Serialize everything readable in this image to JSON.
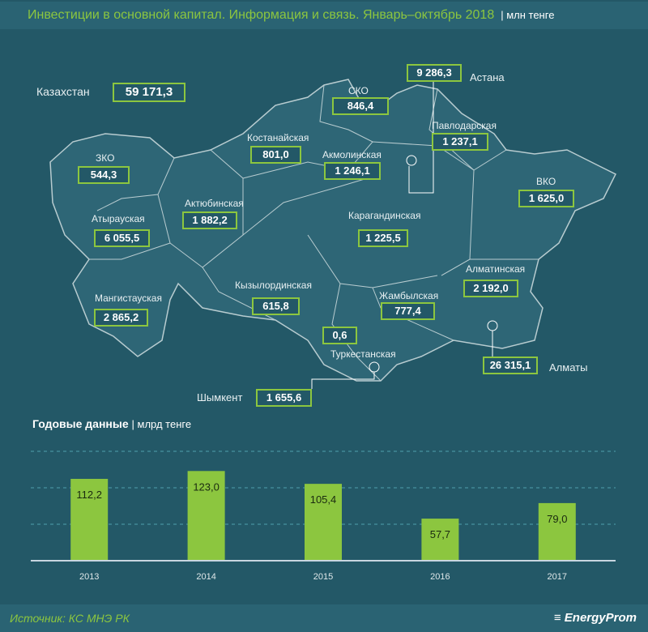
{
  "header": {
    "title": "Инвестиции в основной капитал. Информация и связь. Январь–октябрь 2018",
    "unit": "| млн тенге"
  },
  "total": {
    "label": "Казахстан",
    "value": "59 171,3"
  },
  "regions": [
    {
      "name": "Астана",
      "value": "9 286,3"
    },
    {
      "name": "СКО",
      "value": "846,4"
    },
    {
      "name": "Павлодарская",
      "value": "1 237,1"
    },
    {
      "name": "Костанайская",
      "value": "801,0"
    },
    {
      "name": "Акмолинская",
      "value": "1 246,1"
    },
    {
      "name": "ЗКО",
      "value": "544,3"
    },
    {
      "name": "Актюбинская",
      "value": "1 882,2"
    },
    {
      "name": "ВКО",
      "value": "1 625,0"
    },
    {
      "name": "Атырауская",
      "value": "6 055,5"
    },
    {
      "name": "Карагандинская",
      "value": "1 225,5"
    },
    {
      "name": "Алматинская",
      "value": "2 192,0"
    },
    {
      "name": "Мангистауская",
      "value": "2 865,2"
    },
    {
      "name": "Кызылординская",
      "value": "615,8"
    },
    {
      "name": "Жамбылская",
      "value": "777,4"
    },
    {
      "name": "Туркестанская",
      "value": "0,6"
    },
    {
      "name": "Алматы",
      "value": "26 315,1"
    },
    {
      "name": "Шымкент",
      "value": "1 655,6"
    }
  ],
  "annual": {
    "title": "Годовые данные",
    "unit": "| млрд тенге"
  },
  "chart_data": {
    "type": "bar",
    "title": "Годовые данные",
    "ylabel": "млрд тенге",
    "categories": [
      "2013",
      "2014",
      "2015",
      "2016",
      "2017"
    ],
    "values": [
      112.2,
      123.0,
      105.4,
      57.7,
      79.0
    ],
    "labels": [
      "112,2",
      "123,0",
      "105,4",
      "57,7",
      "79,0"
    ],
    "ylim": [
      0,
      150
    ],
    "grid": true,
    "color": "#8cc63f"
  },
  "footer": {
    "source": "Источник: КС МНЭ РК",
    "logo": "EnergyProm"
  },
  "colors": {
    "accent": "#8cc63f",
    "background": "#235867"
  }
}
